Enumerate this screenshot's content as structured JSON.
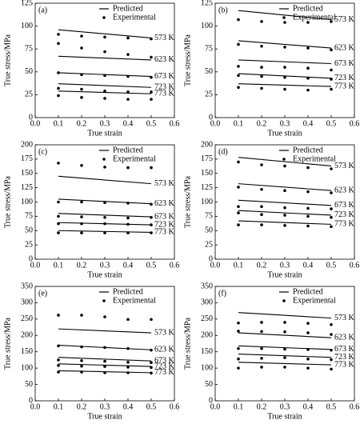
{
  "chart_data": [
    {
      "type": "line",
      "panel_label": "(a)",
      "xlabel": "True strain",
      "ylabel": "True stress/MPa",
      "xlim": [
        0,
        0.6
      ],
      "xticks": [
        {
          "value": 0,
          "label": "0.0"
        },
        0.1,
        0.2,
        0.3,
        0.4,
        0.5,
        0.6
      ],
      "ylim": [
        0,
        125
      ],
      "yticks": [
        0,
        25,
        50,
        75,
        100,
        125
      ],
      "color": "#000000",
      "predicted": {
        "name": "Predicted",
        "x": [
          0.1,
          0.5
        ],
        "series": [
          {
            "name": "573 K",
            "values": [
              96,
              87
            ]
          },
          {
            "name": "623 K",
            "values": [
              67,
              63
            ]
          },
          {
            "name": "673 K",
            "values": [
              49,
              45
            ]
          },
          {
            "name": "723 K",
            "values": [
              37,
              33
            ]
          },
          {
            "name": "773 K",
            "values": [
              29,
              26
            ]
          }
        ]
      },
      "experimental": {
        "name": "Experimental",
        "x": [
          0.1,
          0.2,
          0.3,
          0.4,
          0.5
        ],
        "series": [
          {
            "values": [
              91,
              89,
              88,
              87,
              86
            ]
          },
          {
            "values": [
              81,
              76,
              72,
              69,
              66
            ]
          },
          {
            "values": [
              49,
              47,
              46,
              45,
              44
            ]
          },
          {
            "values": [
              32,
              31,
              29,
              28,
              28
            ]
          },
          {
            "values": [
              24,
              22,
              21,
              20,
              20
            ]
          }
        ]
      }
    },
    {
      "type": "line",
      "panel_label": "(b)",
      "xlabel": "True strain",
      "ylabel": "True stress/MPa",
      "xlim": [
        0,
        0.6
      ],
      "xticks": [
        {
          "value": 0,
          "label": "0.0"
        },
        0.1,
        0.2,
        0.3,
        0.4,
        0.5,
        0.6
      ],
      "ylim": [
        0,
        125
      ],
      "yticks": [
        0,
        25,
        50,
        75,
        100,
        125
      ],
      "color": "#000000",
      "predicted": {
        "name": "Predicted",
        "x": [
          0.1,
          0.5
        ],
        "series": [
          {
            "name": "573 K",
            "values": [
              117,
              107
            ]
          },
          {
            "name": "623 K",
            "values": [
              84,
              76
            ]
          },
          {
            "name": "673 K",
            "values": [
              63,
              59
            ]
          },
          {
            "name": "723 K",
            "values": [
              48,
              43
            ]
          },
          {
            "name": "773 K",
            "values": [
              37,
              34
            ]
          }
        ]
      },
      "experimental": {
        "name": "Experimental",
        "x": [
          0.1,
          0.2,
          0.3,
          0.4,
          0.5
        ],
        "series": [
          {
            "values": [
              107,
              105,
              104,
              104,
              105
            ]
          },
          {
            "values": [
              80,
              78,
              77,
              76,
              74
            ]
          },
          {
            "values": [
              56,
              55,
              55,
              54,
              52
            ]
          },
          {
            "values": [
              46,
              45,
              44,
              43,
              42
            ]
          },
          {
            "values": [
              33,
              32,
              31,
              30,
              31
            ]
          }
        ]
      }
    },
    {
      "type": "line",
      "panel_label": "(c)",
      "xlabel": "True strain",
      "ylabel": "True stress/MPa",
      "xlim": [
        0,
        0.6
      ],
      "xticks": [
        {
          "value": 0,
          "label": "0.0"
        },
        0.1,
        0.2,
        0.3,
        0.4,
        0.5,
        0.6
      ],
      "ylim": [
        0,
        200
      ],
      "yticks": [
        0,
        25,
        50,
        75,
        100,
        125,
        150,
        175,
        200
      ],
      "color": "#000000",
      "predicted": {
        "name": "Predicted",
        "x": [
          0.1,
          0.5
        ],
        "series": [
          {
            "name": "573 K",
            "values": [
              145,
              132
            ]
          },
          {
            "name": "623 K",
            "values": [
              105,
              97
            ]
          },
          {
            "name": "673 K",
            "values": [
              80,
              74
            ]
          },
          {
            "name": "723 K",
            "values": [
              64,
              60
            ]
          },
          {
            "name": "773 K",
            "values": [
              50,
              47
            ]
          }
        ]
      },
      "experimental": {
        "name": "Experimental",
        "x": [
          0.1,
          0.2,
          0.3,
          0.4,
          0.5
        ],
        "series": [
          {
            "values": [
              168,
              164,
              161,
              160,
              160
            ]
          },
          {
            "values": [
              100,
              100,
              99,
              98,
              96
            ]
          },
          {
            "values": [
              75,
              74,
              73,
              72,
              73
            ]
          },
          {
            "values": [
              62,
              62,
              62,
              61,
              60
            ]
          },
          {
            "values": [
              46,
              46,
              46,
              46,
              46
            ]
          }
        ]
      }
    },
    {
      "type": "line",
      "panel_label": "(d)",
      "xlabel": "True strain",
      "ylabel": "True stress/MPa",
      "xlim": [
        0,
        0.6
      ],
      "xticks": [
        {
          "value": 0,
          "label": "0.0"
        },
        0.1,
        0.2,
        0.3,
        0.4,
        0.5,
        0.6
      ],
      "ylim": [
        0,
        200
      ],
      "yticks": [
        0,
        25,
        50,
        75,
        100,
        125,
        150,
        175,
        200
      ],
      "color": "#000000",
      "predicted": {
        "name": "Predicted",
        "x": [
          0.1,
          0.5
        ],
        "series": [
          {
            "name": "573 K",
            "values": [
              178,
              163
            ]
          },
          {
            "name": "623 K",
            "values": [
              132,
              120
            ]
          },
          {
            "name": "673 K",
            "values": [
              103,
              94
            ]
          },
          {
            "name": "723 K",
            "values": [
              85,
              77
            ]
          },
          {
            "name": "773 K",
            "values": [
              67,
              61
            ]
          }
        ]
      },
      "experimental": {
        "name": "Experimental",
        "x": [
          0.1,
          0.2,
          0.3,
          0.4,
          0.5
        ],
        "series": [
          {
            "values": [
              170,
              165,
              163,
              160,
              158
            ]
          },
          {
            "values": [
              126,
              122,
              120,
              118,
              116
            ]
          },
          {
            "values": [
              92,
              92,
              90,
              89,
              88
            ]
          },
          {
            "values": [
              81,
              78,
              77,
              75,
              73
            ]
          },
          {
            "values": [
              60,
              60,
              59,
              58,
              57
            ]
          }
        ]
      }
    },
    {
      "type": "line",
      "panel_label": "(e)",
      "xlabel": "True strain",
      "ylabel": "True stress/MPa",
      "xlim": [
        0,
        0.6
      ],
      "xticks": [
        {
          "value": 0,
          "label": "0.0"
        },
        0.1,
        0.2,
        0.3,
        0.4,
        0.5,
        0.6
      ],
      "ylim": [
        0,
        350
      ],
      "yticks": [
        0,
        50,
        100,
        150,
        200,
        250,
        300,
        350
      ],
      "color": "#000000",
      "predicted": {
        "name": "Predicted",
        "x": [
          0.1,
          0.5
        ],
        "series": [
          {
            "name": "573 K",
            "values": [
              220,
              208
            ]
          },
          {
            "name": "623 K",
            "values": [
              170,
              156
            ]
          },
          {
            "name": "673 K",
            "values": [
              133,
              122
            ]
          },
          {
            "name": "723 K",
            "values": [
              113,
              105
            ]
          },
          {
            "name": "773 K",
            "values": [
              92,
              86
            ]
          }
        ]
      },
      "experimental": {
        "name": "Experimental",
        "x": [
          0.1,
          0.2,
          0.3,
          0.4,
          0.5
        ],
        "series": [
          {
            "values": [
              262,
              262,
              257,
              249,
              249
            ]
          },
          {
            "values": [
              168,
              165,
              163,
              160,
              155
            ]
          },
          {
            "values": [
              125,
              123,
              121,
              118,
              117
            ]
          },
          {
            "values": [
              108,
              106,
              105,
              103,
              102
            ]
          },
          {
            "values": [
              88,
              88,
              86,
              86,
              85
            ]
          }
        ]
      }
    },
    {
      "type": "line",
      "panel_label": "(f)",
      "xlabel": "True strain",
      "ylabel": "True stress/MPa",
      "xlim": [
        0,
        0.6
      ],
      "xticks": [
        {
          "value": 0,
          "label": "0.0"
        },
        0.1,
        0.2,
        0.3,
        0.4,
        0.5,
        0.6
      ],
      "ylim": [
        0,
        350
      ],
      "yticks": [
        0,
        50,
        100,
        150,
        200,
        250,
        300,
        350
      ],
      "color": "#000000",
      "predicted": {
        "name": "Predicted",
        "x": [
          0.1,
          0.5
        ],
        "series": [
          {
            "name": "573 K",
            "values": [
              270,
              253
            ]
          },
          {
            "name": "623 K",
            "values": [
              208,
              193
            ]
          },
          {
            "name": "673 K",
            "values": [
              168,
              157
            ]
          },
          {
            "name": "723 K",
            "values": [
              143,
              133
            ]
          },
          {
            "name": "773 K",
            "values": [
              118,
              110
            ]
          }
        ]
      },
      "experimental": {
        "name": "Experimental",
        "x": [
          0.1,
          0.2,
          0.3,
          0.4,
          0.5
        ],
        "series": [
          {
            "values": [
              238,
              240,
              240,
              237,
              233
            ]
          },
          {
            "values": [
              213,
              212,
              211,
              208,
              203
            ]
          },
          {
            "values": [
              160,
              160,
              158,
              157,
              155
            ]
          },
          {
            "values": [
              128,
              130,
              132,
              128,
              126
            ]
          },
          {
            "values": [
              100,
              103,
              103,
              100,
              97
            ]
          }
        ]
      }
    }
  ]
}
